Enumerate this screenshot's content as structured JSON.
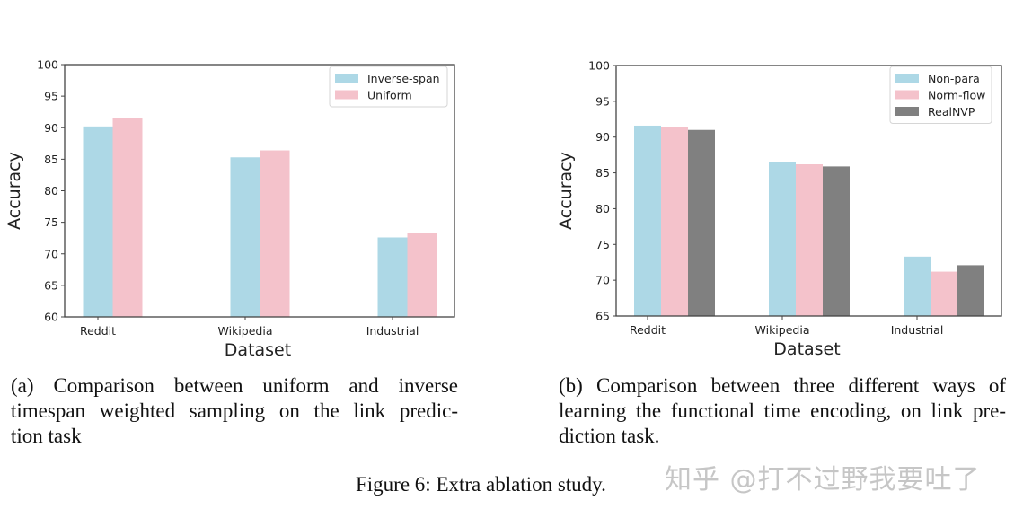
{
  "figure": {
    "title": "Figure 6: Extra ablation study.",
    "watermark": "知乎 @打不过野我要吐了"
  },
  "captions": {
    "a": {
      "lines": [
        "(a) Comparison between uniform and inverse",
        "timespan weighted sampling on the link predic-",
        "tion task"
      ]
    },
    "b": {
      "lines": [
        "(b) Comparison between three different ways of",
        "learning the functional time encoding, on link pre-",
        "diction task."
      ]
    }
  },
  "colors": {
    "light_blue": "#add8e6",
    "pink": "#f4c2cb",
    "gray": "#808080",
    "axis": "#444444"
  },
  "chart_data": [
    {
      "id": "a",
      "type": "bar",
      "title": "",
      "xlabel": "Dataset",
      "ylabel": "Accuracy",
      "categories": [
        "Reddit",
        "Wikipedia",
        "Industrial"
      ],
      "series": [
        {
          "name": "Inverse-span",
          "color": "#add8e6",
          "values": [
            90.2,
            85.3,
            72.6
          ]
        },
        {
          "name": "Uniform",
          "color": "#f4c2cb",
          "values": [
            91.6,
            86.4,
            73.3
          ]
        }
      ],
      "ylim": [
        60,
        100
      ],
      "yticks": [
        60,
        65,
        70,
        75,
        80,
        85,
        90,
        95,
        100
      ],
      "grid": false,
      "legend_position": "upper right"
    },
    {
      "id": "b",
      "type": "bar",
      "title": "",
      "xlabel": "Dataset",
      "ylabel": "Accuracy",
      "categories": [
        "Reddit",
        "Wikipedia",
        "Industrial"
      ],
      "series": [
        {
          "name": "Non-para",
          "color": "#add8e6",
          "values": [
            91.6,
            86.5,
            73.3
          ]
        },
        {
          "name": "Norm-flow",
          "color": "#f4c2cb",
          "values": [
            91.4,
            86.2,
            71.2
          ]
        },
        {
          "name": "RealNVP",
          "color": "#808080",
          "values": [
            91.0,
            85.9,
            72.1
          ]
        }
      ],
      "ylim": [
        65,
        100
      ],
      "yticks": [
        65,
        70,
        75,
        80,
        85,
        90,
        95,
        100
      ],
      "grid": false,
      "legend_position": "upper right"
    }
  ]
}
